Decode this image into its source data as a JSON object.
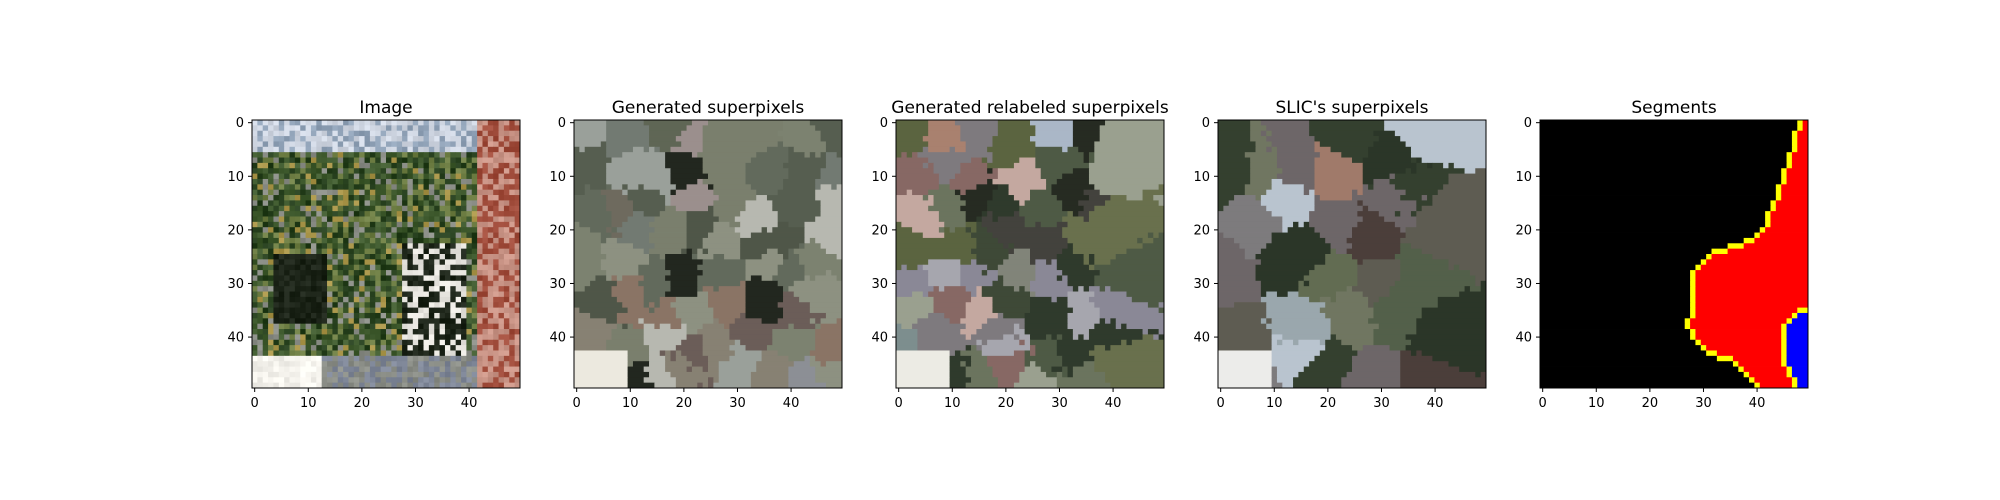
{
  "chart_data": [
    {
      "type": "image",
      "title": "Image",
      "xlabel": "",
      "ylabel": "",
      "xlim": [
        -0.5,
        49.5
      ],
      "ylim": [
        49.5,
        -0.5
      ],
      "xticks": [
        0,
        10,
        20,
        30,
        40
      ],
      "yticks": [
        0,
        10,
        20,
        30,
        40
      ],
      "content": "photo",
      "grid": false,
      "palette": [
        "#cfd6e2",
        "#8fa1b6",
        "#3f5a2e",
        "#263f1d",
        "#6f7f45",
        "#a89448",
        "#1c2418",
        "#8a8d86",
        "#e8e6e0",
        "#9f4b3a",
        "#c99486",
        "#5a4a44",
        "#f4f2ec",
        "#7d8596"
      ]
    },
    {
      "type": "image",
      "title": "Generated superpixels",
      "xlabel": "",
      "ylabel": "",
      "xlim": [
        -0.5,
        49.5
      ],
      "ylim": [
        49.5,
        -0.5
      ],
      "xticks": [
        0,
        10,
        20,
        30,
        40
      ],
      "yticks": [
        0,
        10,
        20,
        30,
        40
      ],
      "content": "superpixels",
      "grid": false,
      "palette": [
        "#7a7f6d",
        "#5f6655",
        "#8d9181",
        "#6e6a5e",
        "#9aa09a",
        "#4f5648",
        "#727a72",
        "#878173",
        "#a2a7a6",
        "#626a5c",
        "#6b5d58",
        "#8a7465",
        "#b7b8b0",
        "#22271f",
        "#565e50",
        "#8c8f95",
        "#9b8f8d",
        "#7c8270",
        "#ece9df"
      ]
    },
    {
      "type": "image",
      "title": "Generated relabeled superpixels",
      "xlabel": "",
      "ylabel": "",
      "xlim": [
        -0.5,
        49.5
      ],
      "ylim": [
        49.5,
        -0.5
      ],
      "xticks": [
        0,
        10,
        20,
        30,
        40
      ],
      "yticks": [
        0,
        10,
        20,
        30,
        40
      ],
      "content": "superpixels",
      "grid": false,
      "palette": [
        "#aab7c7",
        "#7d8e8e",
        "#4e5a45",
        "#3e4937",
        "#5b6440",
        "#69704d",
        "#2f3a2c",
        "#6b745e",
        "#818479",
        "#9aa08f",
        "#876864",
        "#a9816f",
        "#c4a8a0",
        "#7e7a7e",
        "#8a8896",
        "#a6a6ae",
        "#43423d",
        "#262b22",
        "#ecebe4"
      ]
    },
    {
      "type": "image",
      "title": "SLIC's superpixels",
      "xlabel": "",
      "ylabel": "",
      "xlim": [
        -0.5,
        49.5
      ],
      "ylim": [
        49.5,
        -0.5
      ],
      "xticks": [
        0,
        10,
        20,
        30,
        40
      ],
      "yticks": [
        0,
        10,
        20,
        30,
        40
      ],
      "content": "superpixels",
      "grid": false,
      "palette": [
        "#b9c4cf",
        "#9aa7ad",
        "#53604a",
        "#34402f",
        "#2b3628",
        "#626c52",
        "#707661",
        "#5e5c52",
        "#7d7b7d",
        "#6d6668",
        "#a07a6a",
        "#4b3e3a",
        "#8b8b97",
        "#ececea"
      ]
    },
    {
      "type": "heatmap",
      "title": "Segments",
      "xlabel": "",
      "ylabel": "",
      "xlim": [
        -0.5,
        49.5
      ],
      "ylim": [
        49.5,
        -0.5
      ],
      "xticks": [
        0,
        10,
        20,
        30,
        40
      ],
      "yticks": [
        0,
        10,
        20,
        30,
        40
      ],
      "content": "segments",
      "grid": false,
      "colors": {
        "background": "#000000",
        "segment_1": "#ff0000",
        "segment_2": "#0000ff",
        "boundary": "#ffff00"
      },
      "boundary_red": [
        [
          0,
          48
        ],
        [
          1,
          48
        ],
        [
          2,
          47
        ],
        [
          3,
          47
        ],
        [
          4,
          47
        ],
        [
          5,
          47
        ],
        [
          6,
          46
        ],
        [
          7,
          46
        ],
        [
          8,
          46
        ],
        [
          9,
          45
        ],
        [
          10,
          45
        ],
        [
          11,
          45
        ],
        [
          12,
          44
        ],
        [
          13,
          44
        ],
        [
          14,
          44
        ],
        [
          15,
          43
        ],
        [
          16,
          43
        ],
        [
          17,
          42
        ],
        [
          18,
          42
        ],
        [
          19,
          42
        ],
        [
          20,
          41
        ],
        [
          21,
          40
        ],
        [
          22,
          38
        ],
        [
          23,
          35
        ],
        [
          24,
          32
        ],
        [
          25,
          31
        ],
        [
          26,
          30
        ],
        [
          27,
          29
        ],
        [
          28,
          28
        ],
        [
          29,
          28
        ],
        [
          30,
          28
        ],
        [
          31,
          28
        ],
        [
          32,
          28
        ],
        [
          33,
          28
        ],
        [
          34,
          28
        ],
        [
          35,
          28
        ],
        [
          36,
          28
        ],
        [
          37,
          27
        ],
        [
          38,
          27
        ],
        [
          39,
          28
        ],
        [
          40,
          28
        ],
        [
          41,
          29
        ],
        [
          42,
          30
        ],
        [
          43,
          31
        ],
        [
          44,
          33
        ],
        [
          45,
          36
        ],
        [
          46,
          37
        ],
        [
          47,
          38
        ],
        [
          48,
          39
        ],
        [
          49,
          40
        ]
      ],
      "boundary_blue": [
        [
          35,
          50
        ],
        [
          36,
          48
        ],
        [
          37,
          47
        ],
        [
          38,
          46
        ],
        [
          39,
          46
        ],
        [
          40,
          46
        ],
        [
          41,
          46
        ],
        [
          42,
          46
        ],
        [
          43,
          46
        ],
        [
          44,
          46
        ],
        [
          45,
          46
        ],
        [
          46,
          47
        ],
        [
          47,
          47
        ],
        [
          48,
          48
        ],
        [
          49,
          48
        ]
      ]
    }
  ]
}
